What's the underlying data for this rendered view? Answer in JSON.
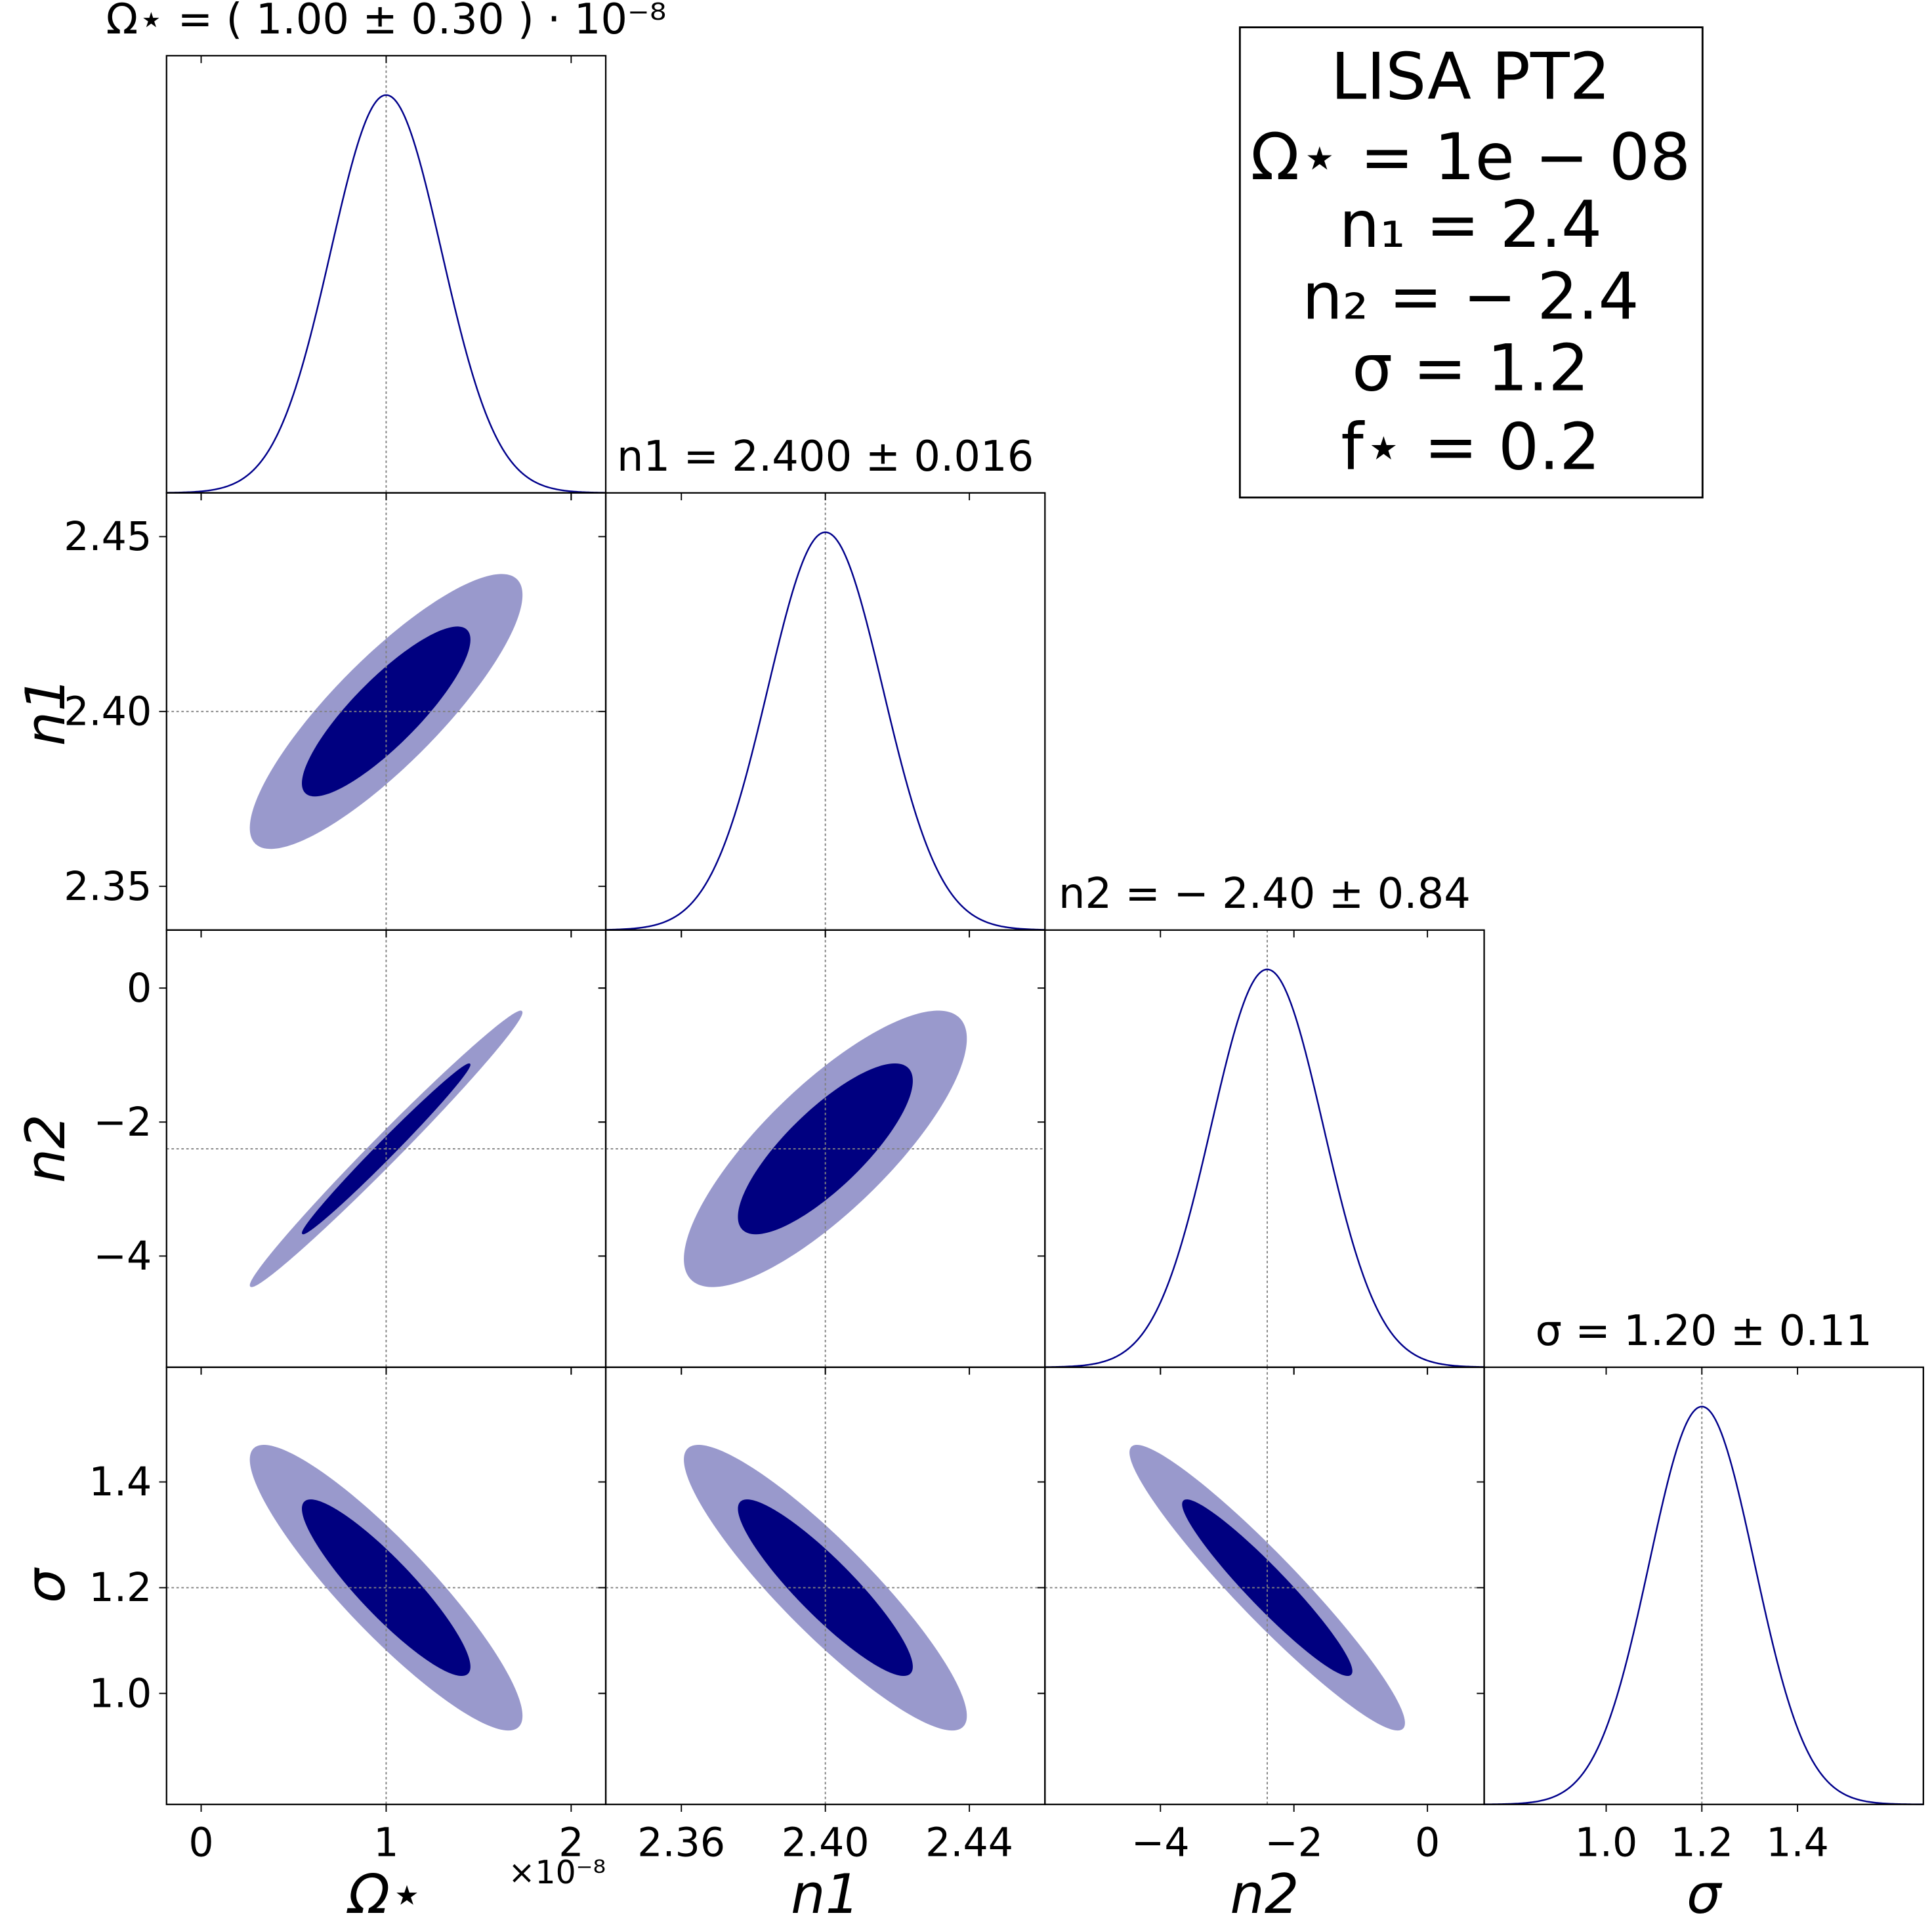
{
  "chart_data": {
    "type": "corner",
    "parameters": [
      {
        "label": "Ω⋆",
        "title": "Ω⋆ = ( 1.00 ± 0.30 ) · 10⁻⁸",
        "offset_label": "×10⁻⁸",
        "truth": 1,
        "mean": 1.0,
        "sigma": 0.3,
        "xlim": [
          -0.187,
          2.187
        ],
        "xticks": [
          0,
          1,
          2
        ]
      },
      {
        "label": "n1",
        "title": "n1 = 2.400 ± 0.016",
        "truth": 2.4,
        "mean": 2.4,
        "sigma": 0.016,
        "xlim": [
          2.339,
          2.461
        ],
        "xticks": [
          2.36,
          {
            "value": 2.4,
            "label": "2.40"
          },
          2.44
        ],
        "ylim": [
          2.3375,
          2.4625
        ],
        "yticks": [
          2.35,
          {
            "value": 2.4,
            "label": "2.40"
          },
          2.45
        ]
      },
      {
        "label": "n2",
        "title": "n2 = − 2.40 ± 0.84",
        "truth": -2.4,
        "mean": -2.4,
        "sigma": 0.84,
        "xlim": [
          -5.73,
          0.85
        ],
        "xticks": [
          {
            "value": -4,
            "label": "−4"
          },
          {
            "value": -2,
            "label": "−2"
          },
          0
        ],
        "ylim": [
          -5.66,
          0.866
        ],
        "yticks": [
          {
            "value": -4,
            "label": "−4"
          },
          {
            "value": -2,
            "label": "−2"
          },
          0
        ]
      },
      {
        "label": "σ",
        "title": "σ = 1.20 ± 0.11",
        "truth": 1.2,
        "mean": 1.2,
        "sigma": 0.11,
        "xlim": [
          0.745,
          1.663
        ],
        "xticks": [
          {
            "value": 1.0,
            "label": "1.0"
          },
          1.2,
          1.4
        ],
        "ylim": [
          0.79,
          1.617
        ],
        "yticks": [
          {
            "value": 1.0,
            "label": "1.0"
          },
          1.2,
          1.4
        ]
      }
    ],
    "correlations": [
      [
        0.85
      ],
      [
        0.99,
        0.8
      ],
      [
        -0.9,
        -0.9,
        -0.95
      ]
    ],
    "contour_levels": [
      0.95,
      0.68
    ],
    "colors": {
      "line": "#00008b",
      "contours": [
        "#9999cc",
        "#000080"
      ],
      "truth": "#808080"
    },
    "annotation": [
      "LISA PT2",
      "Ω⋆ = 1e − 08",
      "n₁ = 2.4",
      "n₂ = − 2.4",
      "σ = 1.2",
      "f⋆ = 0.2"
    ]
  }
}
